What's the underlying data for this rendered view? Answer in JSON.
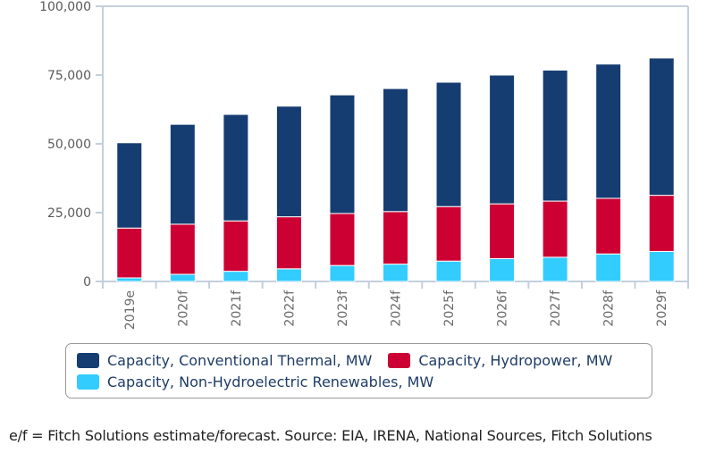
{
  "chart_data": {
    "type": "bar",
    "stacked": true,
    "title": "",
    "xlabel": "",
    "ylabel": "",
    "ylim": [
      0,
      100000
    ],
    "yticks": [
      0,
      25000,
      50000,
      75000,
      100000
    ],
    "ytick_labels": [
      "0",
      "25,000",
      "50,000",
      "75,000",
      "100,000"
    ],
    "grid": false,
    "legend_position": "bottom",
    "categories": [
      "2019e",
      "2020f",
      "2021f",
      "2022f",
      "2023f",
      "2024f",
      "2025f",
      "2026f",
      "2027f",
      "2028f",
      "2029f"
    ],
    "series": [
      {
        "name": "Capacity, Non-Hydroelectric Renewables, MW",
        "color": "#33ccff",
        "values": [
          1300,
          2600,
          3700,
          4600,
          5800,
          6300,
          7400,
          8300,
          8800,
          10000,
          10900
        ]
      },
      {
        "name": "Capacity, Hydropower, MW",
        "color": "#cc0033",
        "values": [
          18100,
          18200,
          18300,
          18900,
          18900,
          19100,
          19800,
          19900,
          20400,
          20200,
          20400
        ]
      },
      {
        "name": "Capacity, Conventional Thermal, MW",
        "color": "#163d72",
        "values": [
          31000,
          36300,
          38700,
          40200,
          43100,
          44700,
          45200,
          46800,
          47600,
          48800,
          49900
        ]
      }
    ]
  },
  "legend": {
    "rows": [
      [
        {
          "label": "Capacity, Conventional Thermal, MW",
          "color": "#163d72"
        },
        {
          "label": "Capacity, Hydropower, MW",
          "color": "#cc0033"
        }
      ],
      [
        {
          "label": "Capacity, Non-Hydroelectric Renewables, MW",
          "color": "#33ccff"
        }
      ]
    ]
  },
  "footnote": "e/f = Fitch Solutions estimate/forecast. Source: EIA, IRENA, National Sources, Fitch Solutions"
}
